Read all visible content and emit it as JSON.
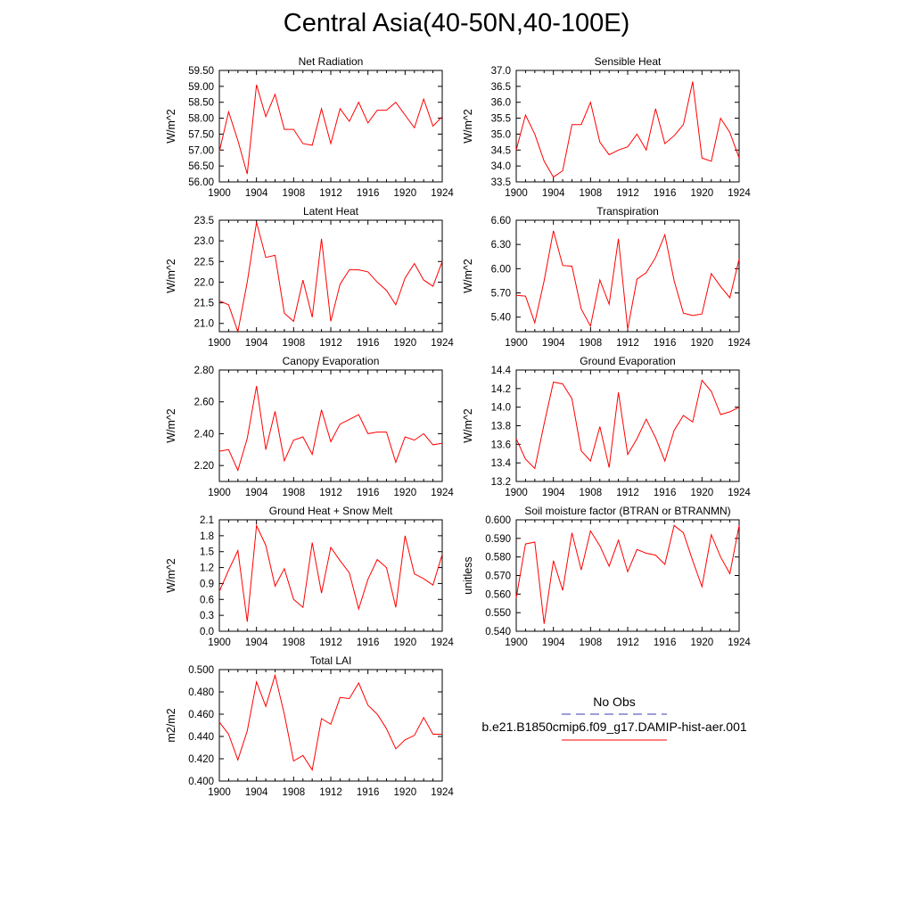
{
  "title": "Central Asia(40-50N,40-100E)",
  "colors": {
    "model": "#ff0000",
    "obs": "#3b3bb3",
    "axis": "#000000"
  },
  "legend": {
    "obs_label": "No Obs",
    "model_label": "b.e21.B1850cmip6.f09_g17.DAMIP-hist-aer.001"
  },
  "chart_data": [
    {
      "type": "line",
      "title": "Net Radiation",
      "ylabel": "W/m^2",
      "xlim": [
        1900,
        1924
      ],
      "ylim": [
        56.0,
        59.5
      ],
      "x_ticks": [
        "1900",
        "1904",
        "1908",
        "1912",
        "1916",
        "1920",
        "1924"
      ],
      "y_ticks": [
        "56.00",
        "56.50",
        "57.00",
        "57.50",
        "58.00",
        "58.50",
        "59.00",
        "59.50"
      ],
      "x": [
        1900,
        1901,
        1902,
        1903,
        1904,
        1905,
        1906,
        1907,
        1908,
        1909,
        1910,
        1911,
        1912,
        1913,
        1914,
        1915,
        1916,
        1917,
        1918,
        1919,
        1920,
        1921,
        1922,
        1923,
        1924
      ],
      "values": [
        56.95,
        58.2,
        57.3,
        56.25,
        59.05,
        58.05,
        58.75,
        57.65,
        57.65,
        57.2,
        57.15,
        58.3,
        57.2,
        58.3,
        57.9,
        58.5,
        57.85,
        58.25,
        58.25,
        58.5,
        58.1,
        57.7,
        58.6,
        57.75,
        58.05
      ]
    },
    {
      "type": "line",
      "title": "Sensible Heat",
      "ylabel": "W/m^2",
      "xlim": [
        1900,
        1924
      ],
      "ylim": [
        33.5,
        37.0
      ],
      "x_ticks": [
        "1900",
        "1904",
        "1908",
        "1912",
        "1916",
        "1920",
        "1924"
      ],
      "y_ticks": [
        "33.5",
        "34.0",
        "34.5",
        "35.0",
        "35.5",
        "36.0",
        "36.5",
        "37.0"
      ],
      "x": [
        1900,
        1901,
        1902,
        1903,
        1904,
        1905,
        1906,
        1907,
        1908,
        1909,
        1910,
        1911,
        1912,
        1913,
        1914,
        1915,
        1916,
        1917,
        1918,
        1919,
        1920,
        1921,
        1922,
        1923,
        1924
      ],
      "values": [
        34.5,
        35.6,
        35.0,
        34.15,
        33.65,
        33.85,
        35.3,
        35.3,
        36.0,
        34.75,
        34.35,
        34.5,
        34.6,
        35.0,
        34.5,
        35.8,
        34.7,
        34.95,
        35.3,
        36.65,
        34.25,
        34.15,
        35.5,
        35.05,
        34.25
      ]
    },
    {
      "type": "line",
      "title": "Latent Heat",
      "ylabel": "W/m^2",
      "xlim": [
        1900,
        1924
      ],
      "ylim": [
        20.8,
        23.5
      ],
      "x_ticks": [
        "1900",
        "1904",
        "1908",
        "1912",
        "1916",
        "1920",
        "1924"
      ],
      "y_ticks": [
        "21.0",
        "21.5",
        "22.0",
        "22.5",
        "23.0",
        "23.5"
      ],
      "x": [
        1900,
        1901,
        1902,
        1903,
        1904,
        1905,
        1906,
        1907,
        1908,
        1909,
        1910,
        1911,
        1912,
        1913,
        1914,
        1915,
        1916,
        1917,
        1918,
        1919,
        1920,
        1921,
        1922,
        1923,
        1924
      ],
      "values": [
        21.55,
        21.45,
        20.8,
        22.0,
        23.45,
        22.6,
        22.65,
        21.25,
        21.05,
        22.05,
        21.15,
        23.05,
        21.05,
        21.95,
        22.3,
        22.3,
        22.25,
        22.0,
        21.8,
        21.45,
        22.1,
        22.45,
        22.05,
        21.9,
        22.5
      ]
    },
    {
      "type": "line",
      "title": "Transpiration",
      "ylabel": "W/m^2",
      "xlim": [
        1900,
        1924
      ],
      "ylim": [
        5.22,
        6.6
      ],
      "x_ticks": [
        "1900",
        "1904",
        "1908",
        "1912",
        "1916",
        "1920",
        "1924"
      ],
      "y_ticks": [
        "5.40",
        "5.70",
        "6.00",
        "6.30",
        "6.60"
      ],
      "x": [
        1900,
        1901,
        1902,
        1903,
        1904,
        1905,
        1906,
        1907,
        1908,
        1909,
        1910,
        1911,
        1912,
        1913,
        1914,
        1915,
        1916,
        1917,
        1918,
        1919,
        1920,
        1921,
        1922,
        1923,
        1924
      ],
      "values": [
        5.67,
        5.66,
        5.33,
        5.85,
        6.47,
        6.04,
        6.03,
        5.5,
        5.29,
        5.86,
        5.56,
        6.37,
        5.25,
        5.87,
        5.95,
        6.14,
        6.42,
        5.85,
        5.45,
        5.42,
        5.44,
        5.94,
        5.78,
        5.64,
        6.12
      ]
    },
    {
      "type": "line",
      "title": "Canopy Evaporation",
      "ylabel": "W/m^2",
      "xlim": [
        1900,
        1924
      ],
      "ylim": [
        2.1,
        2.8
      ],
      "x_ticks": [
        "1900",
        "1904",
        "1908",
        "1912",
        "1916",
        "1920",
        "1924"
      ],
      "y_ticks": [
        "2.20",
        "2.40",
        "2.60",
        "2.80"
      ],
      "x": [
        1900,
        1901,
        1902,
        1903,
        1904,
        1905,
        1906,
        1907,
        1908,
        1909,
        1910,
        1911,
        1912,
        1913,
        1914,
        1915,
        1916,
        1917,
        1918,
        1919,
        1920,
        1921,
        1922,
        1923,
        1924
      ],
      "values": [
        2.29,
        2.3,
        2.17,
        2.37,
        2.7,
        2.3,
        2.54,
        2.23,
        2.36,
        2.38,
        2.27,
        2.55,
        2.35,
        2.46,
        2.49,
        2.52,
        2.4,
        2.41,
        2.41,
        2.22,
        2.38,
        2.36,
        2.4,
        2.33,
        2.34
      ]
    },
    {
      "type": "line",
      "title": "Ground Evaporation",
      "ylabel": "W/m^2",
      "xlim": [
        1900,
        1924
      ],
      "ylim": [
        13.2,
        14.4
      ],
      "x_ticks": [
        "1900",
        "1904",
        "1908",
        "1912",
        "1916",
        "1920",
        "1924"
      ],
      "y_ticks": [
        "13.2",
        "13.4",
        "13.6",
        "13.8",
        "14.0",
        "14.2",
        "14.4"
      ],
      "x": [
        1900,
        1901,
        1902,
        1903,
        1904,
        1905,
        1906,
        1907,
        1908,
        1909,
        1910,
        1911,
        1912,
        1913,
        1914,
        1915,
        1916,
        1917,
        1918,
        1919,
        1920,
        1921,
        1922,
        1923,
        1924
      ],
      "values": [
        13.66,
        13.44,
        13.34,
        13.82,
        14.27,
        14.25,
        14.09,
        13.53,
        13.42,
        13.79,
        13.35,
        14.16,
        13.49,
        13.66,
        13.87,
        13.67,
        13.42,
        13.75,
        13.91,
        13.84,
        14.29,
        14.17,
        13.92,
        13.95,
        14.0
      ]
    },
    {
      "type": "line",
      "title": "Ground Heat + Snow Melt",
      "ylabel": "W/m^2",
      "xlim": [
        1900,
        1924
      ],
      "ylim": [
        0.0,
        2.1
      ],
      "x_ticks": [
        "1900",
        "1904",
        "1908",
        "1912",
        "1916",
        "1920",
        "1924"
      ],
      "y_ticks": [
        "0.0",
        "0.3",
        "0.6",
        "0.9",
        "1.2",
        "1.5",
        "1.8",
        "2.1"
      ],
      "x": [
        1900,
        1901,
        1902,
        1903,
        1904,
        1905,
        1906,
        1907,
        1908,
        1909,
        1910,
        1911,
        1912,
        1913,
        1914,
        1915,
        1916,
        1917,
        1918,
        1919,
        1920,
        1921,
        1922,
        1923,
        1924
      ],
      "values": [
        0.75,
        1.15,
        1.52,
        0.18,
        1.99,
        1.62,
        0.85,
        1.18,
        0.6,
        0.45,
        1.67,
        0.72,
        1.58,
        1.33,
        1.1,
        0.42,
        0.98,
        1.35,
        1.2,
        0.45,
        1.8,
        1.08,
        0.99,
        0.87,
        1.45
      ]
    },
    {
      "type": "line",
      "title": "Soil moisture factor (BTRAN or BTRANMN)",
      "ylabel": "unitless",
      "xlim": [
        1900,
        1924
      ],
      "ylim": [
        0.54,
        0.6
      ],
      "x_ticks": [
        "1900",
        "1904",
        "1908",
        "1912",
        "1916",
        "1920",
        "1924"
      ],
      "y_ticks": [
        "0.540",
        "0.550",
        "0.560",
        "0.570",
        "0.580",
        "0.590",
        "0.600"
      ],
      "x": [
        1900,
        1901,
        1902,
        1903,
        1904,
        1905,
        1906,
        1907,
        1908,
        1909,
        1910,
        1911,
        1912,
        1913,
        1914,
        1915,
        1916,
        1917,
        1918,
        1919,
        1920,
        1921,
        1922,
        1923,
        1924
      ],
      "values": [
        0.558,
        0.587,
        0.588,
        0.544,
        0.578,
        0.562,
        0.593,
        0.573,
        0.594,
        0.586,
        0.575,
        0.589,
        0.572,
        0.584,
        0.582,
        0.581,
        0.576,
        0.597,
        0.593,
        0.578,
        0.564,
        0.592,
        0.58,
        0.571,
        0.597
      ]
    },
    {
      "type": "line",
      "title": "Total LAI",
      "ylabel": "m2/m2",
      "xlim": [
        1900,
        1924
      ],
      "ylim": [
        0.4,
        0.5
      ],
      "x_ticks": [
        "1900",
        "1904",
        "1908",
        "1912",
        "1916",
        "1920",
        "1924"
      ],
      "y_ticks": [
        "0.400",
        "0.420",
        "0.440",
        "0.460",
        "0.480",
        "0.500"
      ],
      "x": [
        1900,
        1901,
        1902,
        1903,
        1904,
        1905,
        1906,
        1907,
        1908,
        1909,
        1910,
        1911,
        1912,
        1913,
        1914,
        1915,
        1916,
        1917,
        1918,
        1919,
        1920,
        1921,
        1922,
        1923,
        1924
      ],
      "values": [
        0.453,
        0.442,
        0.419,
        0.445,
        0.489,
        0.467,
        0.495,
        0.46,
        0.418,
        0.423,
        0.41,
        0.456,
        0.451,
        0.475,
        0.474,
        0.488,
        0.468,
        0.46,
        0.447,
        0.429,
        0.437,
        0.441,
        0.457,
        0.442,
        0.442
      ]
    }
  ]
}
